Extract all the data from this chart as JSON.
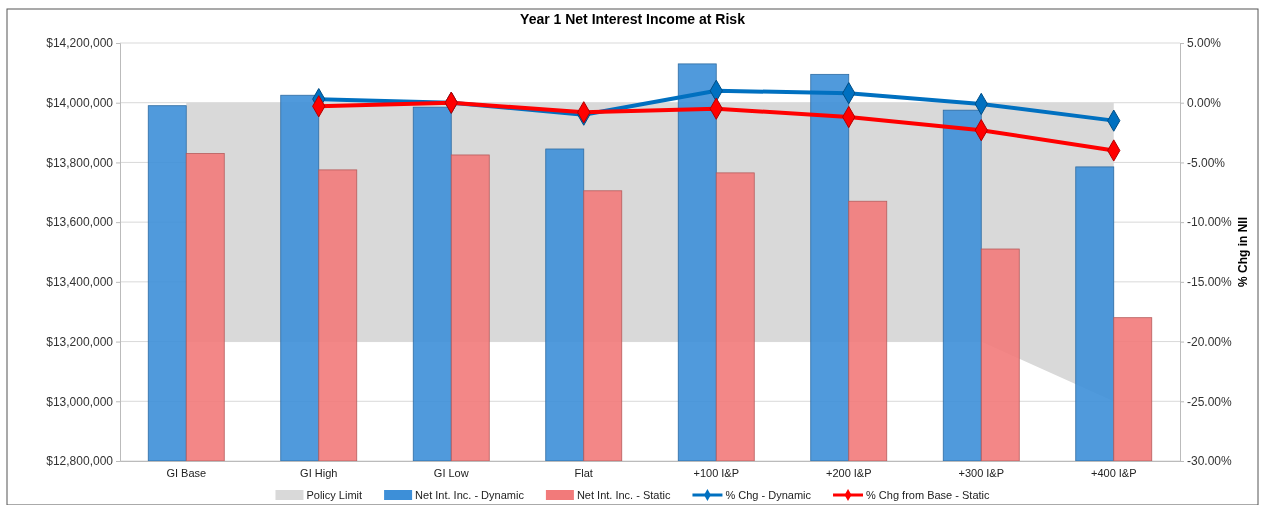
{
  "chart_data": {
    "type": "bar",
    "title": "Year 1 Net Interest Income at Risk",
    "y2label": "% Chg in NII",
    "categories": [
      "GI Base",
      "GI High",
      "GI Low",
      "Flat",
      "+100 I&P",
      "+200 I&P",
      "+300 I&P",
      "+400 I&P"
    ],
    "series": [
      {
        "name": "Policy Limit",
        "type": "area",
        "axis": "y2",
        "color": "#d9d9d9",
        "values": [
          -20,
          -20,
          -20,
          -20,
          -20,
          -20,
          -20,
          -25
        ]
      },
      {
        "name": "Net Int. Inc. - Dynamic",
        "color": "#3d8fd8",
        "values": [
          13990000,
          14025000,
          13985000,
          13845000,
          14130000,
          14095000,
          13975000,
          13785000
        ]
      },
      {
        "name": "Net Int. Inc. - Static",
        "color": "#f27a7a",
        "values": [
          13830000,
          13775000,
          13825000,
          13705000,
          13765000,
          13670000,
          13510000,
          13280000
        ]
      },
      {
        "name": "% Chg - Dynamic",
        "type": "line",
        "marker": "diamond",
        "axis": "y2",
        "color": "#0070c0",
        "values": [
          null,
          0.3,
          0.0,
          -1.0,
          1.0,
          0.8,
          -0.1,
          -1.5
        ]
      },
      {
        "name": "% Chg from Base - Static",
        "type": "line",
        "marker": "diamond",
        "axis": "y2",
        "color": "#ff0000",
        "values": [
          null,
          -0.3,
          0.0,
          -0.8,
          -0.5,
          -1.2,
          -2.3,
          -4.0
        ]
      }
    ],
    "ylim": [
      12800000,
      14200000
    ],
    "yticks": [
      {
        "value": 12800000,
        "label": "$12,800,000"
      },
      {
        "value": 13000000,
        "label": "$13,000,000"
      },
      {
        "value": 13200000,
        "label": "$13,200,000"
      },
      {
        "value": 13400000,
        "label": "$13,400,000"
      },
      {
        "value": 13600000,
        "label": "$13,600,000"
      },
      {
        "value": 13800000,
        "label": "$13,800,000"
      },
      {
        "value": 14000000,
        "label": "$14,000,000"
      },
      {
        "value": 14200000,
        "label": "$14,200,000"
      }
    ],
    "y2lim": [
      -30,
      5
    ],
    "y2ticks": [
      {
        "value": -30,
        "label": "-30.00%"
      },
      {
        "value": -25,
        "label": "-25.00%"
      },
      {
        "value": -20,
        "label": "-20.00%"
      },
      {
        "value": -15,
        "label": "-15.00%"
      },
      {
        "value": -10,
        "label": "-10.00%"
      },
      {
        "value": -5,
        "label": "-5.00%"
      },
      {
        "value": 0,
        "label": "0.00%"
      },
      {
        "value": 5,
        "label": "5.00%"
      }
    ],
    "grid": "y",
    "legend": "bottom",
    "line_style": "solid"
  }
}
